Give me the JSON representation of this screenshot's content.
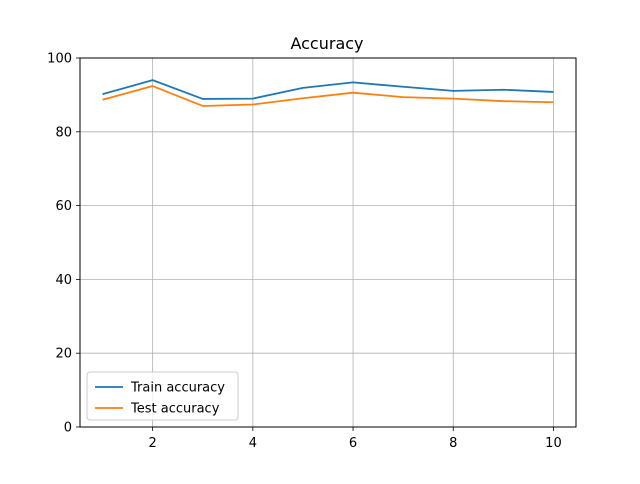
{
  "chart_data": {
    "type": "line",
    "title": "Accuracy",
    "xlabel": "",
    "ylabel": "",
    "x": [
      1,
      2,
      3,
      4,
      5,
      6,
      7,
      8,
      9,
      10
    ],
    "series": [
      {
        "name": "Train accuracy",
        "color": "#1f77b4",
        "values": [
          90.2,
          94.0,
          88.9,
          89.0,
          91.9,
          93.4,
          92.2,
          91.1,
          91.4,
          90.8
        ]
      },
      {
        "name": "Test accuracy",
        "color": "#ff7f0e",
        "values": [
          88.7,
          92.4,
          87.0,
          87.4,
          89.1,
          90.6,
          89.4,
          89.0,
          88.3,
          88.0
        ]
      }
    ],
    "xlim": [
      0.55,
      10.45
    ],
    "ylim": [
      0,
      100
    ],
    "xticks": [
      2,
      4,
      6,
      8,
      10
    ],
    "yticks": [
      0,
      20,
      40,
      60,
      80,
      100
    ],
    "grid": true,
    "legend_position": "lower-left"
  }
}
